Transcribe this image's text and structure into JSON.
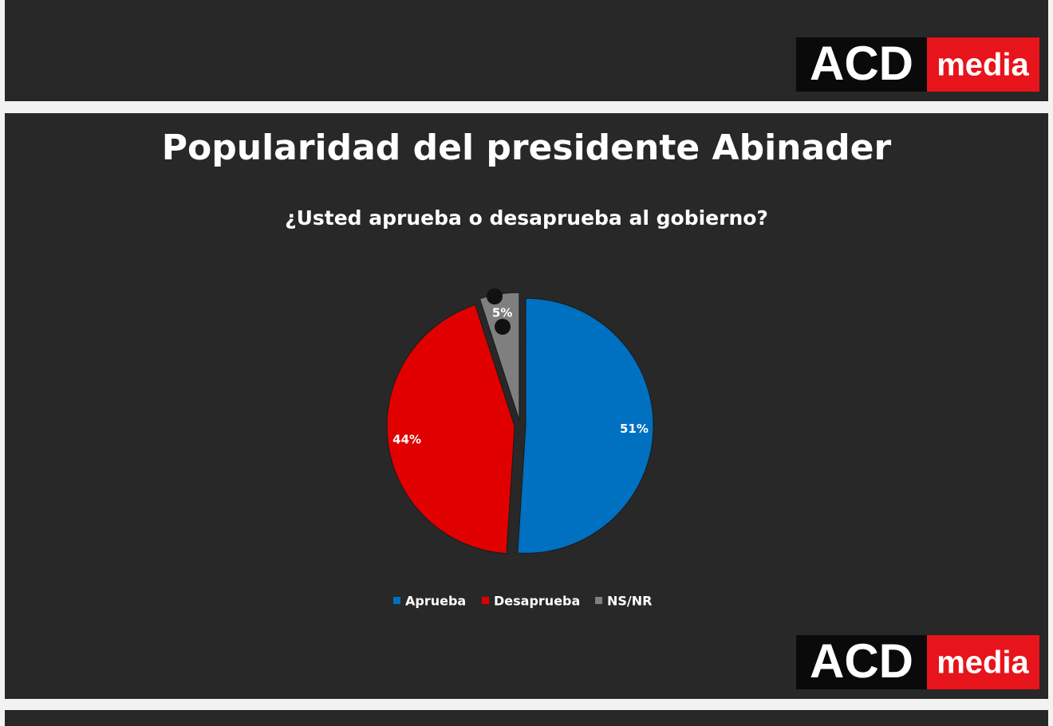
{
  "logo": {
    "left": "ACD",
    "right": "media"
  },
  "chart_data": {
    "type": "pie",
    "title": "Popularidad del presidente Abinader",
    "subtitle": "¿Usted aprueba o desaprueba al gobierno?",
    "categories": [
      "Aprueba",
      "Desaprueba",
      "NS/NR"
    ],
    "values": [
      51,
      44,
      5
    ],
    "value_labels": [
      "51%",
      "44%",
      "5%"
    ],
    "colors": [
      "#0070c0",
      "#e00000",
      "#7f7f7f"
    ],
    "legend": "bottom"
  }
}
